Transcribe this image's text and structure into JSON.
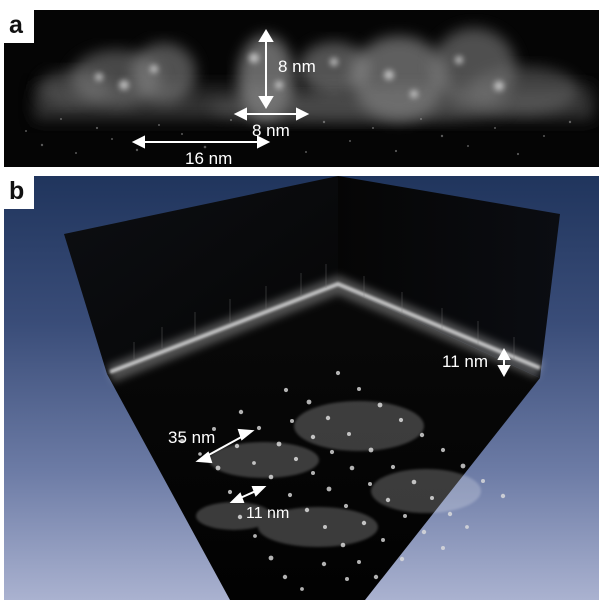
{
  "panel_a": {
    "letter": "a",
    "labels": {
      "vertical_scale": "8 nm",
      "horizontal_scale": "8 nm",
      "long_scale": "16 nm"
    }
  },
  "panel_b": {
    "letter": "b",
    "labels": {
      "wall_thickness": "11 nm",
      "diagonal_scale": "35 nm",
      "small_scale": "11 nm"
    }
  },
  "colors": {
    "panel_a_background": "#050505",
    "panel_b_background_top": "#20355d",
    "panel_b_background_bottom": "#aab2d0",
    "annotation": "#ffffff"
  }
}
